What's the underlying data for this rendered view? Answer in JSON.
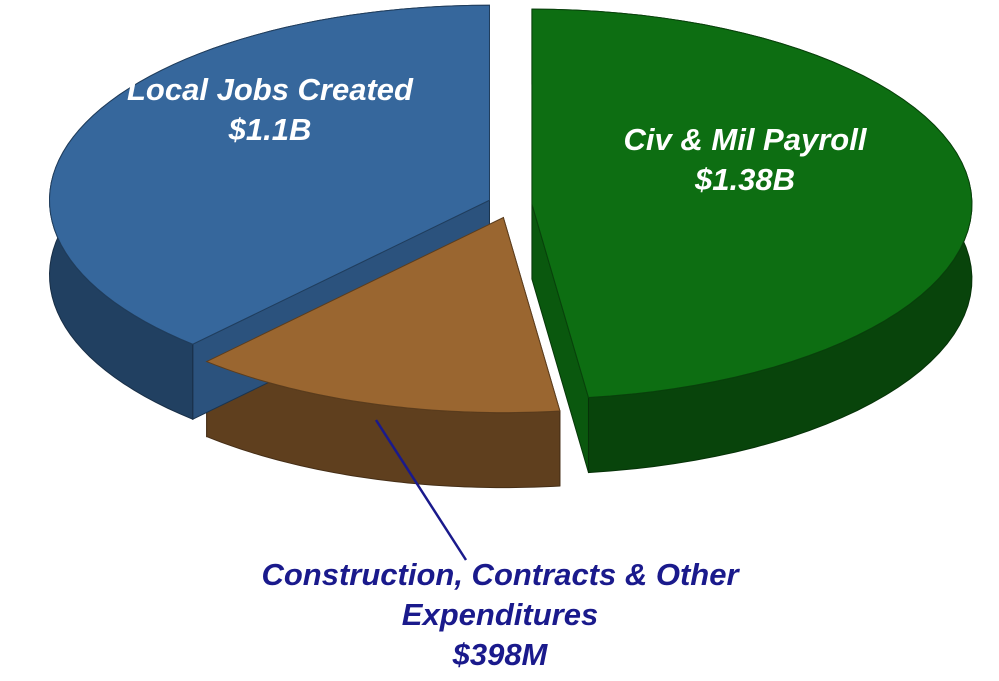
{
  "chart_data": {
    "type": "pie",
    "categories": [
      "Civ & Mil Payroll",
      "Construction, Contracts & Other Expenditures",
      "Local Jobs Created"
    ],
    "values": [
      1380000000,
      398000000,
      1100000000
    ],
    "value_labels": [
      "$1.38B",
      "$398M",
      "$1.1B"
    ],
    "colors": [
      "#0d6e12",
      "#9a6630",
      "#36679c"
    ]
  }
}
